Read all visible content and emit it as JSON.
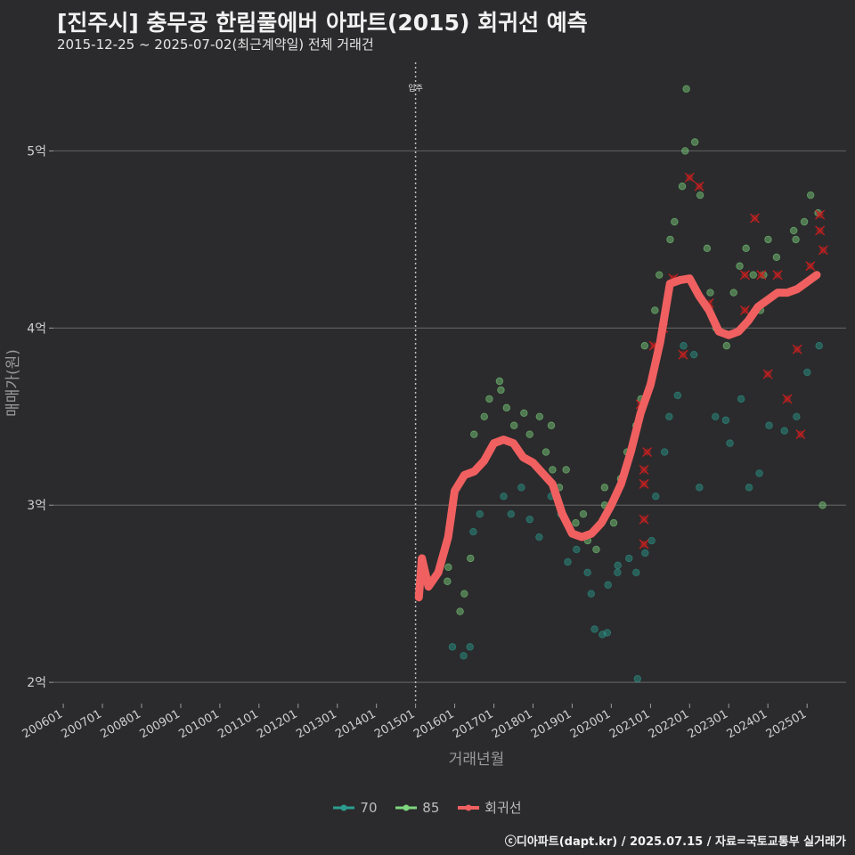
{
  "title": "[진주시] 충무공 한림풀에버 아파트(2015) 회귀선 예측",
  "subtitle": "2015-12-25 ~ 2025-07-02(최근계약일) 전체 거래건",
  "footer": "ⓒ디아파트(dapt.kr) / 2025.07.15 / 자료=국토교통부 실거래가",
  "colors": {
    "background": "#2b2b2d",
    "size70": "#2a9d8f",
    "size85": "#7ed67e",
    "regression": "#f06060",
    "outlier": "#cc1f1f"
  },
  "chart_data": {
    "type": "scatter",
    "xlabel": "거래년월",
    "ylabel": "매매가(원)",
    "x_ticks": [
      "200601",
      "200701",
      "200801",
      "200901",
      "201001",
      "201101",
      "201201",
      "201301",
      "201401",
      "201501",
      "201601",
      "201701",
      "201801",
      "201901",
      "202001",
      "202101",
      "202201",
      "202301",
      "202401",
      "202501"
    ],
    "y_ticks": [
      {
        "value": 2,
        "label": "2억"
      },
      {
        "value": 3,
        "label": "3억"
      },
      {
        "value": 4,
        "label": "4억"
      },
      {
        "value": 5,
        "label": "5억"
      }
    ],
    "xlim": [
      "2005-10-01",
      "2025-12-31"
    ],
    "ylim_eok": [
      1.88,
      5.5
    ],
    "vline": {
      "x": "2015-01-01",
      "label": "입주"
    },
    "legend": [
      "70",
      "85",
      "회귀선"
    ],
    "regression_line": [
      [
        "2015-02",
        2.48
      ],
      [
        "2015-03",
        2.7
      ],
      [
        "2015-05",
        2.54
      ],
      [
        "2015-08",
        2.62
      ],
      [
        "2015-11",
        2.82
      ],
      [
        "2016-01",
        3.08
      ],
      [
        "2016-04",
        3.17
      ],
      [
        "2016-07",
        3.19
      ],
      [
        "2016-10",
        3.25
      ],
      [
        "2017-01",
        3.35
      ],
      [
        "2017-04",
        3.37
      ],
      [
        "2017-07",
        3.35
      ],
      [
        "2017-10",
        3.27
      ],
      [
        "2018-01",
        3.24
      ],
      [
        "2018-04",
        3.18
      ],
      [
        "2018-07",
        3.12
      ],
      [
        "2018-10",
        2.95
      ],
      [
        "2019-01",
        2.84
      ],
      [
        "2019-04",
        2.82
      ],
      [
        "2019-07",
        2.84
      ],
      [
        "2019-10",
        2.9
      ],
      [
        "2020-01",
        3.0
      ],
      [
        "2020-04",
        3.12
      ],
      [
        "2020-07",
        3.3
      ],
      [
        "2020-10",
        3.52
      ],
      [
        "2021-01",
        3.68
      ],
      [
        "2021-04",
        3.92
      ],
      [
        "2021-07",
        4.25
      ],
      [
        "2021-10",
        4.27
      ],
      [
        "2022-01",
        4.28
      ],
      [
        "2022-04",
        4.18
      ],
      [
        "2022-07",
        4.1
      ],
      [
        "2022-10",
        3.98
      ],
      [
        "2023-01",
        3.96
      ],
      [
        "2023-04",
        3.98
      ],
      [
        "2023-07",
        4.04
      ],
      [
        "2023-10",
        4.12
      ],
      [
        "2024-01",
        4.16
      ],
      [
        "2024-04",
        4.2
      ],
      [
        "2024-07",
        4.2
      ],
      [
        "2024-10",
        4.22
      ],
      [
        "2025-01",
        4.26
      ],
      [
        "2025-04",
        4.3
      ]
    ],
    "series": [
      {
        "name": "70",
        "values": [
          [
            "2016-01",
            2.2
          ],
          [
            "2016-03",
            2.15
          ],
          [
            "2016-05",
            2.2
          ],
          [
            "2016-07",
            2.85
          ],
          [
            "2016-09",
            2.95
          ],
          [
            "2017-03",
            3.05
          ],
          [
            "2017-06",
            2.95
          ],
          [
            "2017-09",
            3.1
          ],
          [
            "2017-12",
            2.92
          ],
          [
            "2018-03",
            2.82
          ],
          [
            "2018-06",
            3.05
          ],
          [
            "2018-09",
            2.95
          ],
          [
            "2018-12",
            2.68
          ],
          [
            "2019-02",
            2.75
          ],
          [
            "2019-05",
            2.62
          ],
          [
            "2019-07",
            2.5
          ],
          [
            "2019-08",
            2.3
          ],
          [
            "2019-10",
            2.27
          ],
          [
            "2019-11",
            2.28
          ],
          [
            "2020-01",
            2.55
          ],
          [
            "2020-02",
            2.62
          ],
          [
            "2020-04",
            2.66
          ],
          [
            "2020-06",
            2.7
          ],
          [
            "2020-08",
            2.62
          ],
          [
            "2020-09",
            2.02
          ],
          [
            "2020-11",
            2.73
          ],
          [
            "2021-01",
            2.8
          ],
          [
            "2021-03",
            3.05
          ],
          [
            "2021-05",
            3.3
          ],
          [
            "2021-07",
            3.5
          ],
          [
            "2021-09",
            3.62
          ],
          [
            "2021-11",
            3.9
          ],
          [
            "2022-02",
            3.85
          ],
          [
            "2022-05",
            3.1
          ],
          [
            "2022-08",
            3.5
          ],
          [
            "2022-11",
            3.48
          ],
          [
            "2023-02",
            3.35
          ],
          [
            "2023-05",
            3.6
          ],
          [
            "2023-08",
            3.1
          ],
          [
            "2023-11",
            3.18
          ],
          [
            "2024-02",
            3.45
          ],
          [
            "2024-06",
            3.42
          ],
          [
            "2024-10",
            3.5
          ],
          [
            "2025-01",
            3.75
          ],
          [
            "2025-04",
            3.9
          ]
        ]
      },
      {
        "name": "85",
        "values": [
          [
            "2015-10",
            2.57
          ],
          [
            "2015-12",
            2.65
          ],
          [
            "2016-02",
            2.4
          ],
          [
            "2016-04",
            2.5
          ],
          [
            "2016-06",
            2.7
          ],
          [
            "2016-08",
            3.4
          ],
          [
            "2016-10",
            3.5
          ],
          [
            "2016-12",
            3.6
          ],
          [
            "2017-02",
            3.7
          ],
          [
            "2017-04",
            3.65
          ],
          [
            "2017-06",
            3.55
          ],
          [
            "2017-08",
            3.45
          ],
          [
            "2017-10",
            3.52
          ],
          [
            "2017-12",
            3.4
          ],
          [
            "2018-02",
            3.5
          ],
          [
            "2018-04",
            3.3
          ],
          [
            "2018-06",
            3.45
          ],
          [
            "2018-08",
            3.2
          ],
          [
            "2018-10",
            3.1
          ],
          [
            "2018-12",
            3.2
          ],
          [
            "2019-02",
            2.9
          ],
          [
            "2019-04",
            2.95
          ],
          [
            "2019-06",
            2.8
          ],
          [
            "2019-08",
            2.75
          ],
          [
            "2019-10",
            3.0
          ],
          [
            "2019-12",
            3.1
          ],
          [
            "2020-02",
            2.9
          ],
          [
            "2020-04",
            3.15
          ],
          [
            "2020-06",
            3.3
          ],
          [
            "2020-08",
            3.45
          ],
          [
            "2020-10",
            3.6
          ],
          [
            "2020-12",
            3.9
          ],
          [
            "2021-02",
            4.1
          ],
          [
            "2021-04",
            4.3
          ],
          [
            "2021-06",
            4.5
          ],
          [
            "2021-08",
            4.6
          ],
          [
            "2021-10",
            4.8
          ],
          [
            "2021-12",
            5.0
          ],
          [
            "2022-01",
            5.35
          ],
          [
            "2022-02",
            5.05
          ],
          [
            "2022-04",
            4.75
          ],
          [
            "2022-06",
            4.45
          ],
          [
            "2022-08",
            4.2
          ],
          [
            "2022-10",
            4.0
          ],
          [
            "2022-12",
            3.9
          ],
          [
            "2023-02",
            4.2
          ],
          [
            "2023-04",
            4.35
          ],
          [
            "2023-06",
            4.45
          ],
          [
            "2023-08",
            4.3
          ],
          [
            "2023-10",
            4.1
          ],
          [
            "2023-12",
            4.3
          ],
          [
            "2024-02",
            4.5
          ],
          [
            "2024-04",
            4.4
          ],
          [
            "2024-06",
            4.2
          ],
          [
            "2024-08",
            4.55
          ],
          [
            "2024-10",
            4.5
          ],
          [
            "2024-12",
            4.6
          ],
          [
            "2025-02",
            4.75
          ],
          [
            "2025-04",
            4.65
          ],
          [
            "2025-06",
            3.0
          ]
        ]
      }
    ],
    "outliers": [
      [
        "2020-10",
        3.57
      ],
      [
        "2020-11",
        3.2
      ],
      [
        "2020-11",
        3.12
      ],
      [
        "2020-11",
        2.92
      ],
      [
        "2020-11",
        2.78
      ],
      [
        "2020-12",
        3.3
      ],
      [
        "2021-02",
        3.9
      ],
      [
        "2021-05",
        4.0
      ],
      [
        "2021-08",
        4.28
      ],
      [
        "2021-11",
        3.85
      ],
      [
        "2022-01",
        4.85
      ],
      [
        "2022-04",
        4.8
      ],
      [
        "2022-07",
        4.14
      ],
      [
        "2023-06",
        4.3
      ],
      [
        "2023-06",
        4.1
      ],
      [
        "2023-09",
        4.62
      ],
      [
        "2023-11",
        4.3
      ],
      [
        "2024-01",
        3.74
      ],
      [
        "2024-04",
        4.3
      ],
      [
        "2024-07",
        3.6
      ],
      [
        "2024-10",
        3.88
      ],
      [
        "2024-11",
        3.4
      ],
      [
        "2025-02",
        4.35
      ],
      [
        "2025-05",
        4.64
      ],
      [
        "2025-05",
        4.55
      ],
      [
        "2025-06",
        4.44
      ]
    ]
  }
}
